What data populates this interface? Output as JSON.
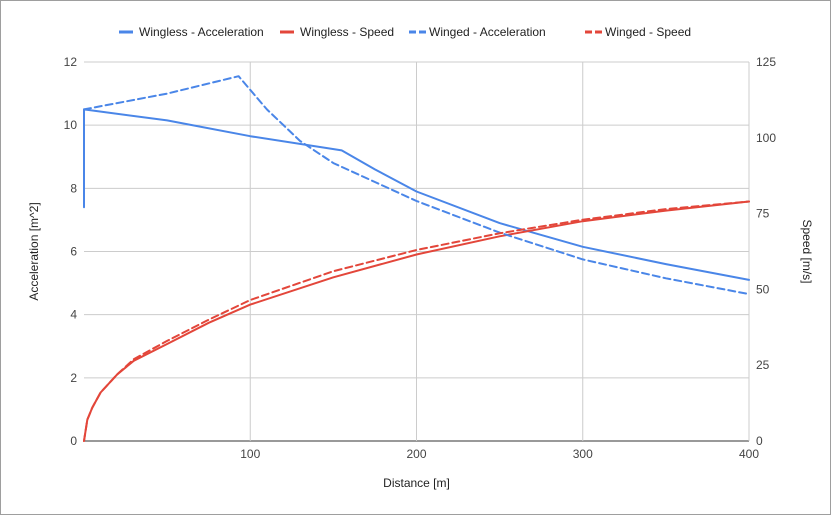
{
  "chart_data": {
    "type": "line",
    "xlabel": "Distance [m]",
    "ylabel_left": "Acceleration [m^2]",
    "ylabel_right": "Speed [m/s]",
    "xlim": [
      0,
      400
    ],
    "ylim_left": [
      0,
      12
    ],
    "ylim_right": [
      0,
      125
    ],
    "x_ticks": [
      "100",
      "200",
      "300",
      "400"
    ],
    "y_ticks_left": [
      "0",
      "2",
      "4",
      "6",
      "8",
      "10",
      "12"
    ],
    "y_ticks_right": [
      "0",
      "25",
      "50",
      "75",
      "100",
      "125"
    ],
    "grid": true,
    "legend_position": "top",
    "series": [
      {
        "name": "Wingless - Acceleration",
        "axis": "left",
        "color": "#4a86e8",
        "dash": "solid",
        "points": [
          [
            0,
            7.4
          ],
          [
            0,
            10.5
          ],
          [
            50,
            10.15
          ],
          [
            100,
            9.65
          ],
          [
            155,
            9.2
          ],
          [
            175,
            8.6
          ],
          [
            200,
            7.9
          ],
          [
            250,
            6.9
          ],
          [
            300,
            6.15
          ],
          [
            350,
            5.6
          ],
          [
            400,
            5.1
          ]
        ]
      },
      {
        "name": "Wingless - Speed",
        "axis": "right",
        "color": "#e3463a",
        "dash": "solid",
        "points": [
          [
            0,
            0
          ],
          [
            2,
            7
          ],
          [
            5,
            11
          ],
          [
            10,
            16
          ],
          [
            20,
            22
          ],
          [
            30,
            26.5
          ],
          [
            50,
            32
          ],
          [
            75,
            39
          ],
          [
            100,
            45
          ],
          [
            150,
            54
          ],
          [
            200,
            61.5
          ],
          [
            250,
            67.5
          ],
          [
            300,
            72.5
          ],
          [
            350,
            76
          ],
          [
            400,
            79
          ]
        ]
      },
      {
        "name": "Winged - Acceleration",
        "axis": "left",
        "color": "#4a86e8",
        "dash": "dashed",
        "points": [
          [
            0,
            10.5
          ],
          [
            50,
            11
          ],
          [
            93,
            11.55
          ],
          [
            110,
            10.5
          ],
          [
            130,
            9.5
          ],
          [
            150,
            8.8
          ],
          [
            175,
            8.2
          ],
          [
            200,
            7.6
          ],
          [
            250,
            6.6
          ],
          [
            300,
            5.75
          ],
          [
            350,
            5.15
          ],
          [
            400,
            4.65
          ]
        ]
      },
      {
        "name": "Winged - Speed",
        "axis": "right",
        "color": "#e3463a",
        "dash": "dashed",
        "points": [
          [
            0,
            0
          ],
          [
            2,
            7
          ],
          [
            5,
            11
          ],
          [
            10,
            16
          ],
          [
            20,
            22
          ],
          [
            30,
            27
          ],
          [
            50,
            33
          ],
          [
            75,
            40
          ],
          [
            100,
            46.5
          ],
          [
            150,
            56
          ],
          [
            200,
            63
          ],
          [
            250,
            68.5
          ],
          [
            300,
            73
          ],
          [
            350,
            76.5
          ],
          [
            400,
            79
          ]
        ]
      }
    ]
  }
}
